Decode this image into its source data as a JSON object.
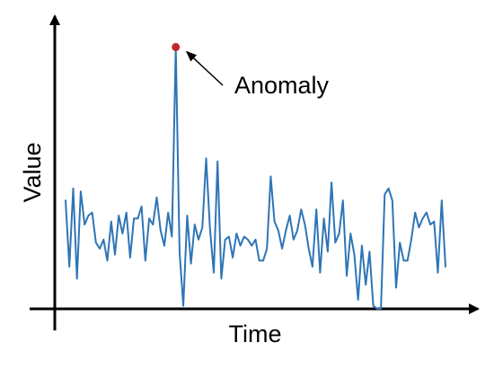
{
  "chart_data": {
    "type": "line",
    "title": "",
    "xlabel": "Time",
    "ylabel": "Value",
    "grid": false,
    "legend": "none",
    "ticks": "none",
    "xlim": [
      0,
      100
    ],
    "ylim": [
      0,
      100
    ],
    "series": [
      {
        "color": "#2e75b6",
        "x": [
          0,
          1,
          2,
          3,
          4,
          5,
          6,
          7,
          8,
          9,
          10,
          11,
          12,
          13,
          14,
          15,
          16,
          17,
          18,
          19,
          20,
          21,
          22,
          23,
          24,
          25,
          26,
          27,
          28,
          29,
          30,
          31,
          32,
          33,
          34,
          35,
          36,
          37,
          38,
          39,
          40,
          41,
          42,
          43,
          44,
          45,
          46,
          47,
          48,
          49,
          50,
          51,
          52,
          53,
          54,
          55,
          56,
          57,
          58,
          59,
          60,
          61,
          62,
          63,
          64,
          65,
          66,
          67,
          68,
          69,
          70,
          71,
          72,
          73,
          74,
          75,
          76,
          77,
          78,
          79,
          80,
          81,
          82,
          83,
          84,
          85,
          86,
          87,
          88,
          89,
          90,
          91,
          92,
          93,
          94,
          95,
          96,
          97,
          98,
          99,
          100
        ],
        "values": [
          42,
          20,
          46,
          16,
          45,
          34,
          37,
          38,
          28,
          26,
          29,
          22,
          35,
          24,
          37,
          31,
          38,
          23,
          36,
          36,
          40,
          22,
          36,
          34,
          43,
          32,
          27,
          38,
          30,
          93,
          25,
          7,
          37,
          21,
          34,
          29,
          33,
          56,
          33,
          18,
          55,
          16,
          29,
          30,
          23,
          31,
          27,
          30,
          29,
          27,
          29,
          22,
          22,
          26,
          50,
          35,
          32,
          26,
          32,
          37,
          29,
          32,
          39,
          34,
          26,
          20,
          39,
          18,
          36,
          25,
          48,
          28,
          31,
          42,
          17,
          31,
          24,
          9,
          27,
          14,
          25,
          7,
          6,
          6,
          44,
          46,
          42,
          13,
          28,
          22,
          22,
          29,
          38,
          33,
          36,
          38,
          34,
          35,
          18,
          42,
          20
        ]
      }
    ],
    "anomaly": {
      "label": "Anomaly",
      "x": 29,
      "y": 93,
      "color": "#c0262d"
    }
  }
}
